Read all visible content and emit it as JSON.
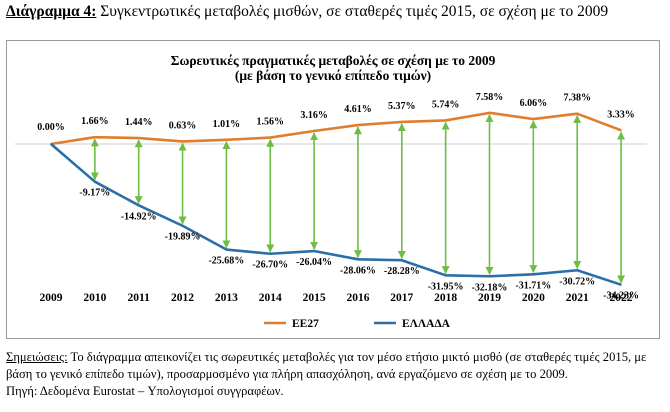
{
  "caption": {
    "label": "Διάγραμμα 4:",
    "text": " Συγκεντρωτικές μεταβολές μισθών, σε σταθερές τιμές 2015, σε σχέση με το 2009"
  },
  "notes": {
    "label": "Σημειώσεις:",
    "text": " Το διάγραμμα απεικονίζει τις σωρευτικές μεταβολές για τον μέσο ετήσιο μικτό μισθό (σε σταθερές τιμές 2015, με βάση το γενικό επίπεδο τιμών), προσαρμοσμένο για πλήρη απασχόληση, ανά εργαζόμενο σε σχέση με το 2009.",
    "source": "Πηγή: Δεδομένα Eurostat – Υπολογισμοί συγγραφέων."
  },
  "chart_data": {
    "type": "line",
    "title": "Σωρευτικές πραγματικές μεταβολές σε σχέση με το 2009",
    "subtitle": "(με βάση το γενικό επίπεδο τιμών)",
    "xlabel": "",
    "ylabel": "",
    "categories": [
      "2009",
      "2010",
      "2011",
      "2012",
      "2013",
      "2014",
      "2015",
      "2016",
      "2017",
      "2018",
      "2019",
      "2020",
      "2021",
      "2022"
    ],
    "series": [
      {
        "name": "ΕΕ27",
        "color": "#E07E2E",
        "values": [
          0.0,
          1.66,
          1.44,
          0.63,
          1.01,
          1.56,
          3.16,
          4.61,
          5.37,
          5.74,
          7.58,
          6.06,
          7.38,
          3.33
        ],
        "labels": [
          "0.00%",
          "1.66%",
          "1.44%",
          "0.63%",
          "1.01%",
          "1.56%",
          "3.16%",
          "4.61%",
          "5.37%",
          "5.74%",
          "7.58%",
          "6.06%",
          "7.38%",
          "3.33%"
        ]
      },
      {
        "name": "ΕΛΛΑΔΑ",
        "color": "#2B6FA6",
        "values": [
          0.0,
          -9.17,
          -14.92,
          -19.89,
          -25.68,
          -26.7,
          -26.04,
          -28.06,
          -28.28,
          -31.95,
          -32.18,
          -31.71,
          -30.72,
          -34.23
        ],
        "labels": [
          "",
          "-9.17%",
          "-14.92%",
          "-19.89%",
          "-25.68%",
          "-26.70%",
          "-26.04%",
          "-28.06%",
          "-28.28%",
          "-31.95%",
          "-32.18%",
          "-31.71%",
          "-30.72%",
          "-34.23%"
        ]
      }
    ],
    "gap_arrow_color": "#6DBE45",
    "ylim": [
      -36,
      10
    ],
    "grid": false,
    "legend_position": "bottom"
  }
}
